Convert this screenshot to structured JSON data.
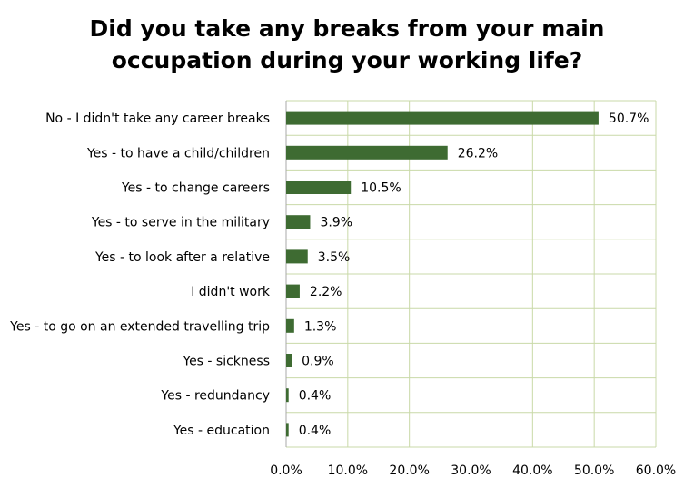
{
  "chart_data": {
    "type": "bar",
    "orientation": "horizontal",
    "title": [
      "Did you take any breaks from your main",
      "occupation during your working life?"
    ],
    "categories": [
      "No - I didn't take any career breaks",
      "Yes - to have a child/children",
      "Yes - to change careers",
      "Yes - to serve in the military",
      "Yes - to look after a relative",
      "I didn't work",
      "Yes - to go on an extended travelling trip",
      "Yes - sickness",
      "Yes - redundancy",
      "Yes - education"
    ],
    "values": [
      50.7,
      26.2,
      10.5,
      3.9,
      3.5,
      2.2,
      1.3,
      0.9,
      0.4,
      0.4
    ],
    "data_labels": [
      "50.7%",
      "26.2%",
      "10.5%",
      "3.9%",
      "3.5%",
      "2.2%",
      "1.3%",
      "0.9%",
      "0.4%",
      "0.4%"
    ],
    "xlim": [
      0,
      60
    ],
    "x_ticks": [
      0,
      10,
      20,
      30,
      40,
      50,
      60
    ],
    "x_tick_labels": [
      "0.0%",
      "10.0%",
      "20.0%",
      "30.0%",
      "40.0%",
      "50.0%",
      "60.0%"
    ],
    "xlabel": "",
    "ylabel": "",
    "grid": true,
    "legend": false,
    "colors": {
      "bar": "#3e6b32",
      "grid": "#c9d9a8",
      "axis": "#a8a8a8"
    }
  }
}
